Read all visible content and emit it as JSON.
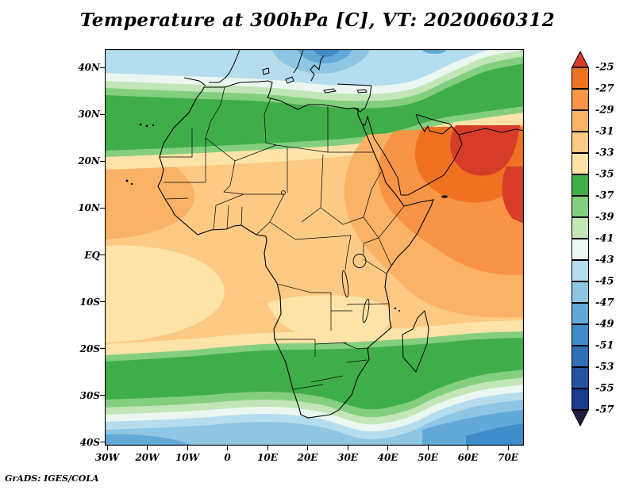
{
  "title": "Temperature at 300hPa [C], VT: 2020060312",
  "attribution": "GrADS: IGES/COLA",
  "axes": {
    "lat_ticks": [
      {
        "label": "40N",
        "deg": 40
      },
      {
        "label": "30N",
        "deg": 30
      },
      {
        "label": "20N",
        "deg": 20
      },
      {
        "label": "10N",
        "deg": 10
      },
      {
        "label": "EQ",
        "deg": 0
      },
      {
        "label": "10S",
        "deg": -10
      },
      {
        "label": "20S",
        "deg": -20
      },
      {
        "label": "30S",
        "deg": -30
      },
      {
        "label": "40S",
        "deg": -40
      }
    ],
    "lon_ticks": [
      {
        "label": "30W",
        "deg": -30
      },
      {
        "label": "20W",
        "deg": -20
      },
      {
        "label": "10W",
        "deg": -10
      },
      {
        "label": "0",
        "deg": 0
      },
      {
        "label": "10E",
        "deg": 10
      },
      {
        "label": "20E",
        "deg": 20
      },
      {
        "label": "30E",
        "deg": 30
      },
      {
        "label": "40E",
        "deg": 40
      },
      {
        "label": "50E",
        "deg": 50
      },
      {
        "label": "60E",
        "deg": 60
      },
      {
        "label": "70E",
        "deg": 70
      }
    ]
  },
  "colorbar": {
    "boundary_labels": [
      "-25",
      "-27",
      "-29",
      "-31",
      "-33",
      "-35",
      "-37",
      "-39",
      "-41",
      "-43",
      "-45",
      "-47",
      "-49",
      "-51",
      "-53",
      "-55",
      "-57"
    ],
    "colors": [
      "#d73c28",
      "#ef7222",
      "#f79445",
      "#fab366",
      "#fcca85",
      "#fde3a7",
      "#3fae49",
      "#84cf7f",
      "#c2e6b8",
      "#ecf7f1",
      "#b5ddee",
      "#8ec6e4",
      "#62a9d8",
      "#3f8cc8",
      "#2f6fb5",
      "#2453a3",
      "#1a3a8f",
      "#241a3e"
    ]
  },
  "chart_data": {
    "type": "heatmap",
    "title": "Temperature at 300hPa [C], VT: 2020060312",
    "variable": "Air temperature",
    "pressure_level": "300 hPa",
    "units": "degrees Celsius",
    "valid_time": "2020060312",
    "source_stamp": "GrADS: IGES/COLA",
    "x_axis": {
      "ticks": [
        "30W",
        "20W",
        "10W",
        "0",
        "10E",
        "20E",
        "30E",
        "40E",
        "50E",
        "60E",
        "70E"
      ],
      "range": "30W to about 74E"
    },
    "y_axis": {
      "ticks": [
        "40N",
        "30N",
        "20N",
        "10N",
        "EQ",
        "10S",
        "20S",
        "30S",
        "40S"
      ],
      "range": "40S to about 44N"
    },
    "contour_interval": 2,
    "contour_levels": [
      -25,
      -27,
      -29,
      -31,
      -33,
      -35,
      -37,
      -39,
      -41,
      -43,
      -45,
      -47,
      -49,
      -51,
      -53,
      -55,
      -57
    ],
    "legend_position": "right vertical colorbar with over/under arrows",
    "estimated_values_grid": {
      "lons": [
        -30,
        -10,
        10,
        30,
        50,
        70
      ],
      "lats": [
        40,
        30,
        20,
        10,
        0,
        -10,
        -20,
        -30,
        -40
      ],
      "values_c": [
        [
          -45,
          -43,
          -45,
          -46,
          -37,
          -38
        ],
        [
          -37,
          -36,
          -36,
          -36,
          -31,
          -27
        ],
        [
          -31,
          -32,
          -32,
          -30,
          -26,
          -26
        ],
        [
          -30,
          -31,
          -32,
          -31,
          -28,
          -29
        ],
        [
          -32,
          -33,
          -32,
          -31,
          -30,
          -29
        ],
        [
          -33,
          -34,
          -32,
          -33,
          -30,
          -30
        ],
        [
          -32,
          -32,
          -33,
          -34,
          -31,
          -31
        ],
        [
          -37,
          -38,
          -37,
          -37,
          -36,
          -39
        ],
        [
          -44,
          -45,
          -44,
          -46,
          -50,
          -52
        ]
      ],
      "note": "values estimated from fill colors"
    },
    "features": [
      {
        "area": "Arabian Peninsula / Red Sea (45E-70E, 15N-32N)",
        "temp_c": "-25 to -27, warmest region (red core)"
      },
      {
        "area": "Northeast Africa, Horn of Africa, NW Indian Ocean",
        "temp_c": "-27 to -29"
      },
      {
        "area": "Most of tropical Africa and tropical Atlantic (25N-25S)",
        "temp_c": "-29 to -33"
      },
      {
        "area": "Zonal green belt ~28N-35N from Morocco to Middle East",
        "temp_c": "-35 to -39"
      },
      {
        "area": "Mediterranean / northern edge of domain (36N-44N)",
        "temp_c": "-41 to -49, coldest pocket north of Libya"
      },
      {
        "area": "Zonal green belt across southern Africa (~24S-33S)",
        "temp_c": "-35 to -39"
      },
      {
        "area": "Southern Ocean 35S-40S",
        "temp_c": "-41 to -53, deepest blues in the southeast corner"
      }
    ]
  }
}
